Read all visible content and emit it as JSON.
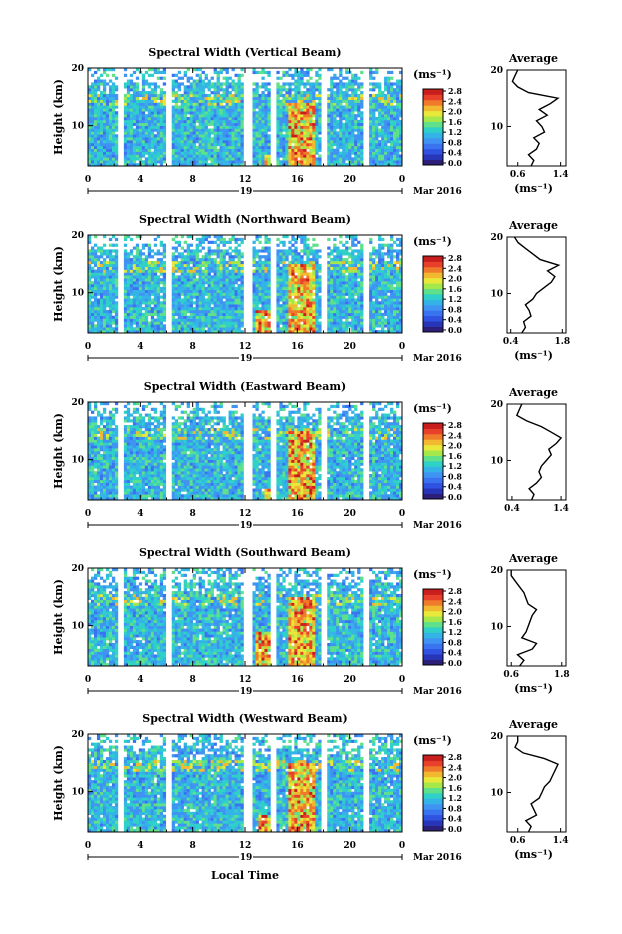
{
  "figure": {
    "xlabel": "Local Time",
    "date_label": "Mar 2016",
    "day_label": "19"
  },
  "chart_data": [
    {
      "type": "heatmap",
      "title": "Spectral Width (Vertical Beam)",
      "ylabel": "Height (km)",
      "xlabel": "Local Time",
      "x_ticks": [
        "0",
        "4",
        "8",
        "12",
        "16",
        "20",
        "0"
      ],
      "y_ticks": [
        "10",
        "20"
      ],
      "xlim": [
        0,
        24
      ],
      "ylim": [
        3,
        20
      ],
      "data_gaps_hours": [
        [
          2.3,
          2.7
        ],
        [
          5.9,
          6.3
        ],
        [
          12.0,
          12.5
        ],
        [
          14.0,
          14.4
        ],
        [
          17.8,
          18.2
        ],
        [
          21.0,
          21.4
        ]
      ],
      "hot_zones": [
        [
          15.3,
          17.3,
          3,
          14
        ],
        [
          13.5,
          14.0,
          3,
          5
        ]
      ],
      "colorbar": {
        "unit": "(ms⁻¹)",
        "ticks": [
          "0.0",
          "0.4",
          "0.8",
          "1.2",
          "1.6",
          "2.0",
          "2.4",
          "2.8"
        ]
      },
      "profile": {
        "title": "Average",
        "xlabel": "(ms⁻¹)",
        "x_ticks": [
          "0.6",
          "1.4"
        ],
        "y_ticks": [
          "10",
          "20"
        ],
        "xlim": [
          0.4,
          1.5
        ],
        "height": [
          3,
          4,
          5,
          6,
          7,
          8,
          9,
          10,
          11,
          12,
          13,
          14,
          15,
          16,
          17,
          18,
          19,
          20
        ],
        "value": [
          0.85,
          0.9,
          0.8,
          0.95,
          1.0,
          0.9,
          1.1,
          1.05,
          0.95,
          1.15,
          1.0,
          1.2,
          1.35,
          0.8,
          0.6,
          0.5,
          0.55,
          0.6
        ]
      }
    },
    {
      "type": "heatmap",
      "title": "Spectral Width (Northward Beam)",
      "ylabel": "Height (km)",
      "xlabel": "Local Time",
      "x_ticks": [
        "0",
        "4",
        "8",
        "12",
        "16",
        "20",
        "0"
      ],
      "y_ticks": [
        "10",
        "20"
      ],
      "xlim": [
        0,
        24
      ],
      "ylim": [
        3,
        20
      ],
      "data_gaps_hours": [
        [
          2.3,
          2.7
        ],
        [
          5.9,
          6.3
        ],
        [
          12.0,
          12.5
        ],
        [
          14.0,
          14.4
        ],
        [
          17.8,
          18.2
        ],
        [
          21.0,
          21.4
        ]
      ],
      "hot_zones": [
        [
          15.3,
          17.3,
          3,
          15
        ],
        [
          12.8,
          14.5,
          3,
          7
        ]
      ],
      "colorbar": {
        "unit": "(ms⁻¹)",
        "ticks": [
          "0.0",
          "0.4",
          "0.8",
          "1.2",
          "1.6",
          "2.0",
          "2.4",
          "2.8"
        ]
      },
      "profile": {
        "title": "Average",
        "xlabel": "(ms⁻¹)",
        "x_ticks": [
          "0.4",
          "1.8"
        ],
        "y_ticks": [
          "10",
          "20"
        ],
        "xlim": [
          0.3,
          1.9
        ],
        "height": [
          3,
          4,
          5,
          6,
          7,
          8,
          9,
          10,
          11,
          12,
          13,
          14,
          15,
          16,
          17,
          18,
          19,
          20
        ],
        "value": [
          0.7,
          0.8,
          0.75,
          0.95,
          0.9,
          0.8,
          1.0,
          1.1,
          1.3,
          1.5,
          1.6,
          1.4,
          1.7,
          1.2,
          1.0,
          0.8,
          0.6,
          0.5
        ]
      }
    },
    {
      "type": "heatmap",
      "title": "Spectral Width (Eastward Beam)",
      "ylabel": "Height (km)",
      "xlabel": "Local Time",
      "x_ticks": [
        "0",
        "4",
        "8",
        "12",
        "16",
        "20",
        "0"
      ],
      "y_ticks": [
        "10",
        "20"
      ],
      "xlim": [
        0,
        24
      ],
      "ylim": [
        3,
        20
      ],
      "data_gaps_hours": [
        [
          2.3,
          2.7
        ],
        [
          5.9,
          6.3
        ],
        [
          12.0,
          12.5
        ],
        [
          14.0,
          14.4
        ],
        [
          17.8,
          18.2
        ],
        [
          21.0,
          21.4
        ]
      ],
      "hot_zones": [
        [
          15.3,
          17.3,
          3,
          15
        ],
        [
          13.5,
          14.0,
          3,
          5
        ]
      ],
      "colorbar": {
        "unit": "(ms⁻¹)",
        "ticks": [
          "0.0",
          "0.4",
          "0.8",
          "1.2",
          "1.6",
          "2.0",
          "2.4",
          "2.8"
        ]
      },
      "profile": {
        "title": "Average",
        "xlabel": "",
        "x_ticks": [
          "0.4",
          "1.4"
        ],
        "y_ticks": [
          "10",
          "20"
        ],
        "xlim": [
          0.3,
          1.5
        ],
        "height": [
          3,
          4,
          5,
          6,
          7,
          8,
          9,
          10,
          11,
          12,
          13,
          14,
          15,
          16,
          17,
          18,
          19,
          20
        ],
        "value": [
          0.8,
          0.85,
          0.75,
          0.9,
          1.0,
          0.95,
          1.0,
          1.1,
          1.2,
          1.15,
          1.3,
          1.4,
          1.2,
          1.0,
          0.7,
          0.5,
          0.55,
          0.6
        ]
      }
    },
    {
      "type": "heatmap",
      "title": "Spectral Width (Southward Beam)",
      "ylabel": "Height (km)",
      "xlabel": "Local Time",
      "x_ticks": [
        "0",
        "4",
        "8",
        "12",
        "16",
        "20",
        "0"
      ],
      "y_ticks": [
        "10",
        "20"
      ],
      "xlim": [
        0,
        24
      ],
      "ylim": [
        3,
        20
      ],
      "data_gaps_hours": [
        [
          2.3,
          2.7
        ],
        [
          5.9,
          6.3
        ],
        [
          12.0,
          12.5
        ],
        [
          14.0,
          14.4
        ],
        [
          17.8,
          18.2
        ],
        [
          21.0,
          21.4
        ]
      ],
      "hot_zones": [
        [
          15.3,
          17.3,
          3,
          15
        ],
        [
          12.8,
          14.5,
          3,
          9
        ]
      ],
      "colorbar": {
        "unit": "(ms⁻¹)",
        "ticks": [
          "0.0",
          "0.4",
          "0.8",
          "1.2",
          "1.6",
          "2.0",
          "2.4",
          "2.8"
        ]
      },
      "profile": {
        "title": "Average",
        "xlabel": "(ms⁻¹)",
        "x_ticks": [
          "0.6",
          "1.8"
        ],
        "y_ticks": [
          "10",
          "20"
        ],
        "xlim": [
          0.5,
          1.9
        ],
        "height": [
          3,
          4,
          5,
          6,
          7,
          8,
          9,
          10,
          11,
          12,
          13,
          14,
          15,
          16,
          17,
          18,
          19,
          20
        ],
        "value": [
          0.8,
          0.9,
          0.75,
          1.1,
          1.2,
          0.85,
          0.95,
          1.0,
          1.05,
          1.1,
          1.2,
          1.0,
          0.95,
          0.9,
          0.8,
          0.7,
          0.6,
          0.6
        ]
      }
    },
    {
      "type": "heatmap",
      "title": "Spectral Width (Westward Beam)",
      "ylabel": "Height (km)",
      "xlabel": "Local Time",
      "x_ticks": [
        "0",
        "4",
        "8",
        "12",
        "16",
        "20",
        "0"
      ],
      "y_ticks": [
        "10",
        "20"
      ],
      "xlim": [
        0,
        24
      ],
      "ylim": [
        3,
        20
      ],
      "data_gaps_hours": [
        [
          2.3,
          2.7
        ],
        [
          5.9,
          6.3
        ],
        [
          12.0,
          12.5
        ],
        [
          14.0,
          14.4
        ],
        [
          17.8,
          18.2
        ],
        [
          21.0,
          21.4
        ]
      ],
      "hot_zones": [
        [
          15.3,
          17.3,
          3,
          15
        ],
        [
          13.0,
          14.0,
          3,
          6
        ]
      ],
      "colorbar": {
        "unit": "(ms⁻¹)",
        "ticks": [
          "0.0",
          "0.4",
          "0.8",
          "1.2",
          "1.6",
          "2.0",
          "2.4",
          "2.8"
        ]
      },
      "profile": {
        "title": "Average",
        "xlabel": "(ms⁻¹)",
        "x_ticks": [
          "0.6",
          "1.4"
        ],
        "y_ticks": [
          "10",
          "20"
        ],
        "xlim": [
          0.4,
          1.5
        ],
        "height": [
          3,
          4,
          5,
          6,
          7,
          8,
          9,
          10,
          11,
          12,
          13,
          14,
          15,
          16,
          17,
          18,
          19,
          20
        ],
        "value": [
          0.8,
          0.85,
          0.75,
          0.95,
          0.9,
          0.85,
          1.0,
          1.05,
          1.1,
          1.2,
          1.25,
          1.3,
          1.35,
          1.1,
          0.7,
          0.55,
          0.6,
          0.6
        ]
      }
    }
  ]
}
